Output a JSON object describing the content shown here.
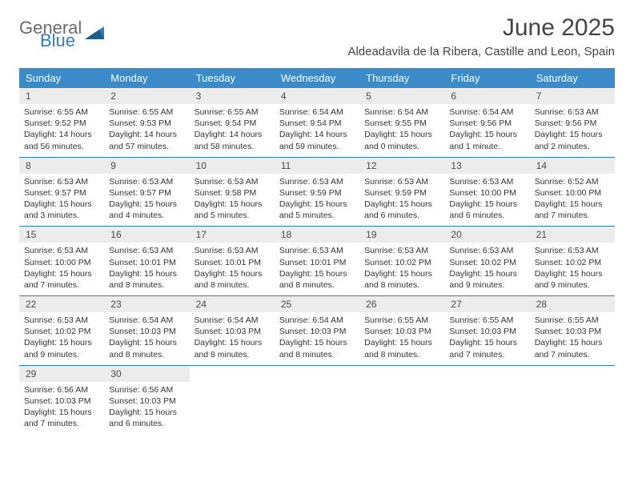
{
  "logo": {
    "text1": "General",
    "text2": "Blue"
  },
  "title": "June 2025",
  "location": "Aldeadavila de la Ribera, Castille and Leon, Spain",
  "colors": {
    "header_bg": "#3b8bc9",
    "header_text": "#ffffff",
    "daynum_bg": "#ececec",
    "row_border": "#2f7bbf",
    "body_text": "#333333",
    "logo_gray": "#6a6a6a",
    "logo_blue": "#2f7bbf"
  },
  "weekdays": [
    "Sunday",
    "Monday",
    "Tuesday",
    "Wednesday",
    "Thursday",
    "Friday",
    "Saturday"
  ],
  "weeks": [
    [
      {
        "day": "1",
        "sunrise": "Sunrise: 6:55 AM",
        "sunset": "Sunset: 9:52 PM",
        "d1": "Daylight: 14 hours",
        "d2": "and 56 minutes."
      },
      {
        "day": "2",
        "sunrise": "Sunrise: 6:55 AM",
        "sunset": "Sunset: 9:53 PM",
        "d1": "Daylight: 14 hours",
        "d2": "and 57 minutes."
      },
      {
        "day": "3",
        "sunrise": "Sunrise: 6:55 AM",
        "sunset": "Sunset: 9:54 PM",
        "d1": "Daylight: 14 hours",
        "d2": "and 58 minutes."
      },
      {
        "day": "4",
        "sunrise": "Sunrise: 6:54 AM",
        "sunset": "Sunset: 9:54 PM",
        "d1": "Daylight: 14 hours",
        "d2": "and 59 minutes."
      },
      {
        "day": "5",
        "sunrise": "Sunrise: 6:54 AM",
        "sunset": "Sunset: 9:55 PM",
        "d1": "Daylight: 15 hours",
        "d2": "and 0 minutes."
      },
      {
        "day": "6",
        "sunrise": "Sunrise: 6:54 AM",
        "sunset": "Sunset: 9:56 PM",
        "d1": "Daylight: 15 hours",
        "d2": "and 1 minute."
      },
      {
        "day": "7",
        "sunrise": "Sunrise: 6:53 AM",
        "sunset": "Sunset: 9:56 PM",
        "d1": "Daylight: 15 hours",
        "d2": "and 2 minutes."
      }
    ],
    [
      {
        "day": "8",
        "sunrise": "Sunrise: 6:53 AM",
        "sunset": "Sunset: 9:57 PM",
        "d1": "Daylight: 15 hours",
        "d2": "and 3 minutes."
      },
      {
        "day": "9",
        "sunrise": "Sunrise: 6:53 AM",
        "sunset": "Sunset: 9:57 PM",
        "d1": "Daylight: 15 hours",
        "d2": "and 4 minutes."
      },
      {
        "day": "10",
        "sunrise": "Sunrise: 6:53 AM",
        "sunset": "Sunset: 9:58 PM",
        "d1": "Daylight: 15 hours",
        "d2": "and 5 minutes."
      },
      {
        "day": "11",
        "sunrise": "Sunrise: 6:53 AM",
        "sunset": "Sunset: 9:59 PM",
        "d1": "Daylight: 15 hours",
        "d2": "and 5 minutes."
      },
      {
        "day": "12",
        "sunrise": "Sunrise: 6:53 AM",
        "sunset": "Sunset: 9:59 PM",
        "d1": "Daylight: 15 hours",
        "d2": "and 6 minutes."
      },
      {
        "day": "13",
        "sunrise": "Sunrise: 6:53 AM",
        "sunset": "Sunset: 10:00 PM",
        "d1": "Daylight: 15 hours",
        "d2": "and 6 minutes."
      },
      {
        "day": "14",
        "sunrise": "Sunrise: 6:52 AM",
        "sunset": "Sunset: 10:00 PM",
        "d1": "Daylight: 15 hours",
        "d2": "and 7 minutes."
      }
    ],
    [
      {
        "day": "15",
        "sunrise": "Sunrise: 6:53 AM",
        "sunset": "Sunset: 10:00 PM",
        "d1": "Daylight: 15 hours",
        "d2": "and 7 minutes."
      },
      {
        "day": "16",
        "sunrise": "Sunrise: 6:53 AM",
        "sunset": "Sunset: 10:01 PM",
        "d1": "Daylight: 15 hours",
        "d2": "and 8 minutes."
      },
      {
        "day": "17",
        "sunrise": "Sunrise: 6:53 AM",
        "sunset": "Sunset: 10:01 PM",
        "d1": "Daylight: 15 hours",
        "d2": "and 8 minutes."
      },
      {
        "day": "18",
        "sunrise": "Sunrise: 6:53 AM",
        "sunset": "Sunset: 10:01 PM",
        "d1": "Daylight: 15 hours",
        "d2": "and 8 minutes."
      },
      {
        "day": "19",
        "sunrise": "Sunrise: 6:53 AM",
        "sunset": "Sunset: 10:02 PM",
        "d1": "Daylight: 15 hours",
        "d2": "and 8 minutes."
      },
      {
        "day": "20",
        "sunrise": "Sunrise: 6:53 AM",
        "sunset": "Sunset: 10:02 PM",
        "d1": "Daylight: 15 hours",
        "d2": "and 9 minutes."
      },
      {
        "day": "21",
        "sunrise": "Sunrise: 6:53 AM",
        "sunset": "Sunset: 10:02 PM",
        "d1": "Daylight: 15 hours",
        "d2": "and 9 minutes."
      }
    ],
    [
      {
        "day": "22",
        "sunrise": "Sunrise: 6:53 AM",
        "sunset": "Sunset: 10:02 PM",
        "d1": "Daylight: 15 hours",
        "d2": "and 9 minutes."
      },
      {
        "day": "23",
        "sunrise": "Sunrise: 6:54 AM",
        "sunset": "Sunset: 10:03 PM",
        "d1": "Daylight: 15 hours",
        "d2": "and 8 minutes."
      },
      {
        "day": "24",
        "sunrise": "Sunrise: 6:54 AM",
        "sunset": "Sunset: 10:03 PM",
        "d1": "Daylight: 15 hours",
        "d2": "and 8 minutes."
      },
      {
        "day": "25",
        "sunrise": "Sunrise: 6:54 AM",
        "sunset": "Sunset: 10:03 PM",
        "d1": "Daylight: 15 hours",
        "d2": "and 8 minutes."
      },
      {
        "day": "26",
        "sunrise": "Sunrise: 6:55 AM",
        "sunset": "Sunset: 10:03 PM",
        "d1": "Daylight: 15 hours",
        "d2": "and 8 minutes."
      },
      {
        "day": "27",
        "sunrise": "Sunrise: 6:55 AM",
        "sunset": "Sunset: 10:03 PM",
        "d1": "Daylight: 15 hours",
        "d2": "and 7 minutes."
      },
      {
        "day": "28",
        "sunrise": "Sunrise: 6:55 AM",
        "sunset": "Sunset: 10:03 PM",
        "d1": "Daylight: 15 hours",
        "d2": "and 7 minutes."
      }
    ],
    [
      {
        "day": "29",
        "sunrise": "Sunrise: 6:56 AM",
        "sunset": "Sunset: 10:03 PM",
        "d1": "Daylight: 15 hours",
        "d2": "and 7 minutes."
      },
      {
        "day": "30",
        "sunrise": "Sunrise: 6:56 AM",
        "sunset": "Sunset: 10:03 PM",
        "d1": "Daylight: 15 hours",
        "d2": "and 6 minutes."
      },
      {
        "empty": true
      },
      {
        "empty": true
      },
      {
        "empty": true
      },
      {
        "empty": true
      },
      {
        "empty": true
      }
    ]
  ]
}
